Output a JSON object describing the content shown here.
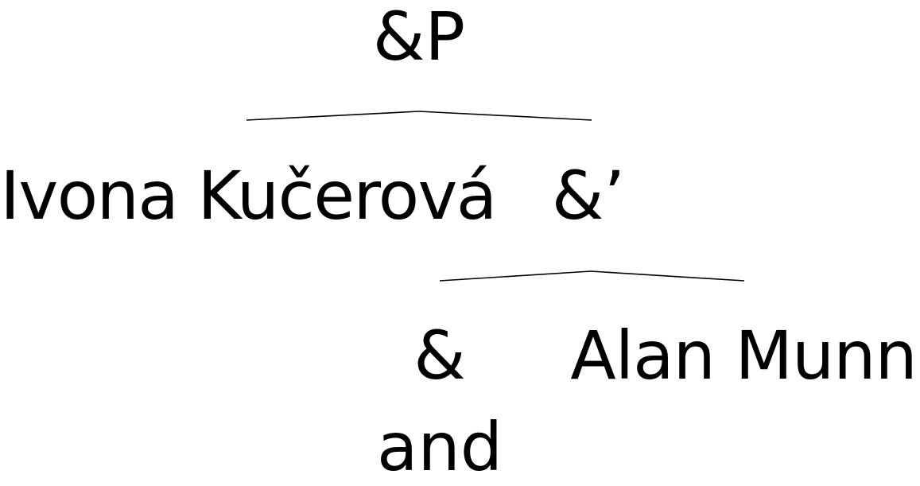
{
  "tree": {
    "root_label": "&P",
    "specifier_label": "Ivona Kučerová",
    "bar_label": "&’",
    "head_label": "&",
    "complement_label": "Alan Munn",
    "head_gloss": "and"
  }
}
